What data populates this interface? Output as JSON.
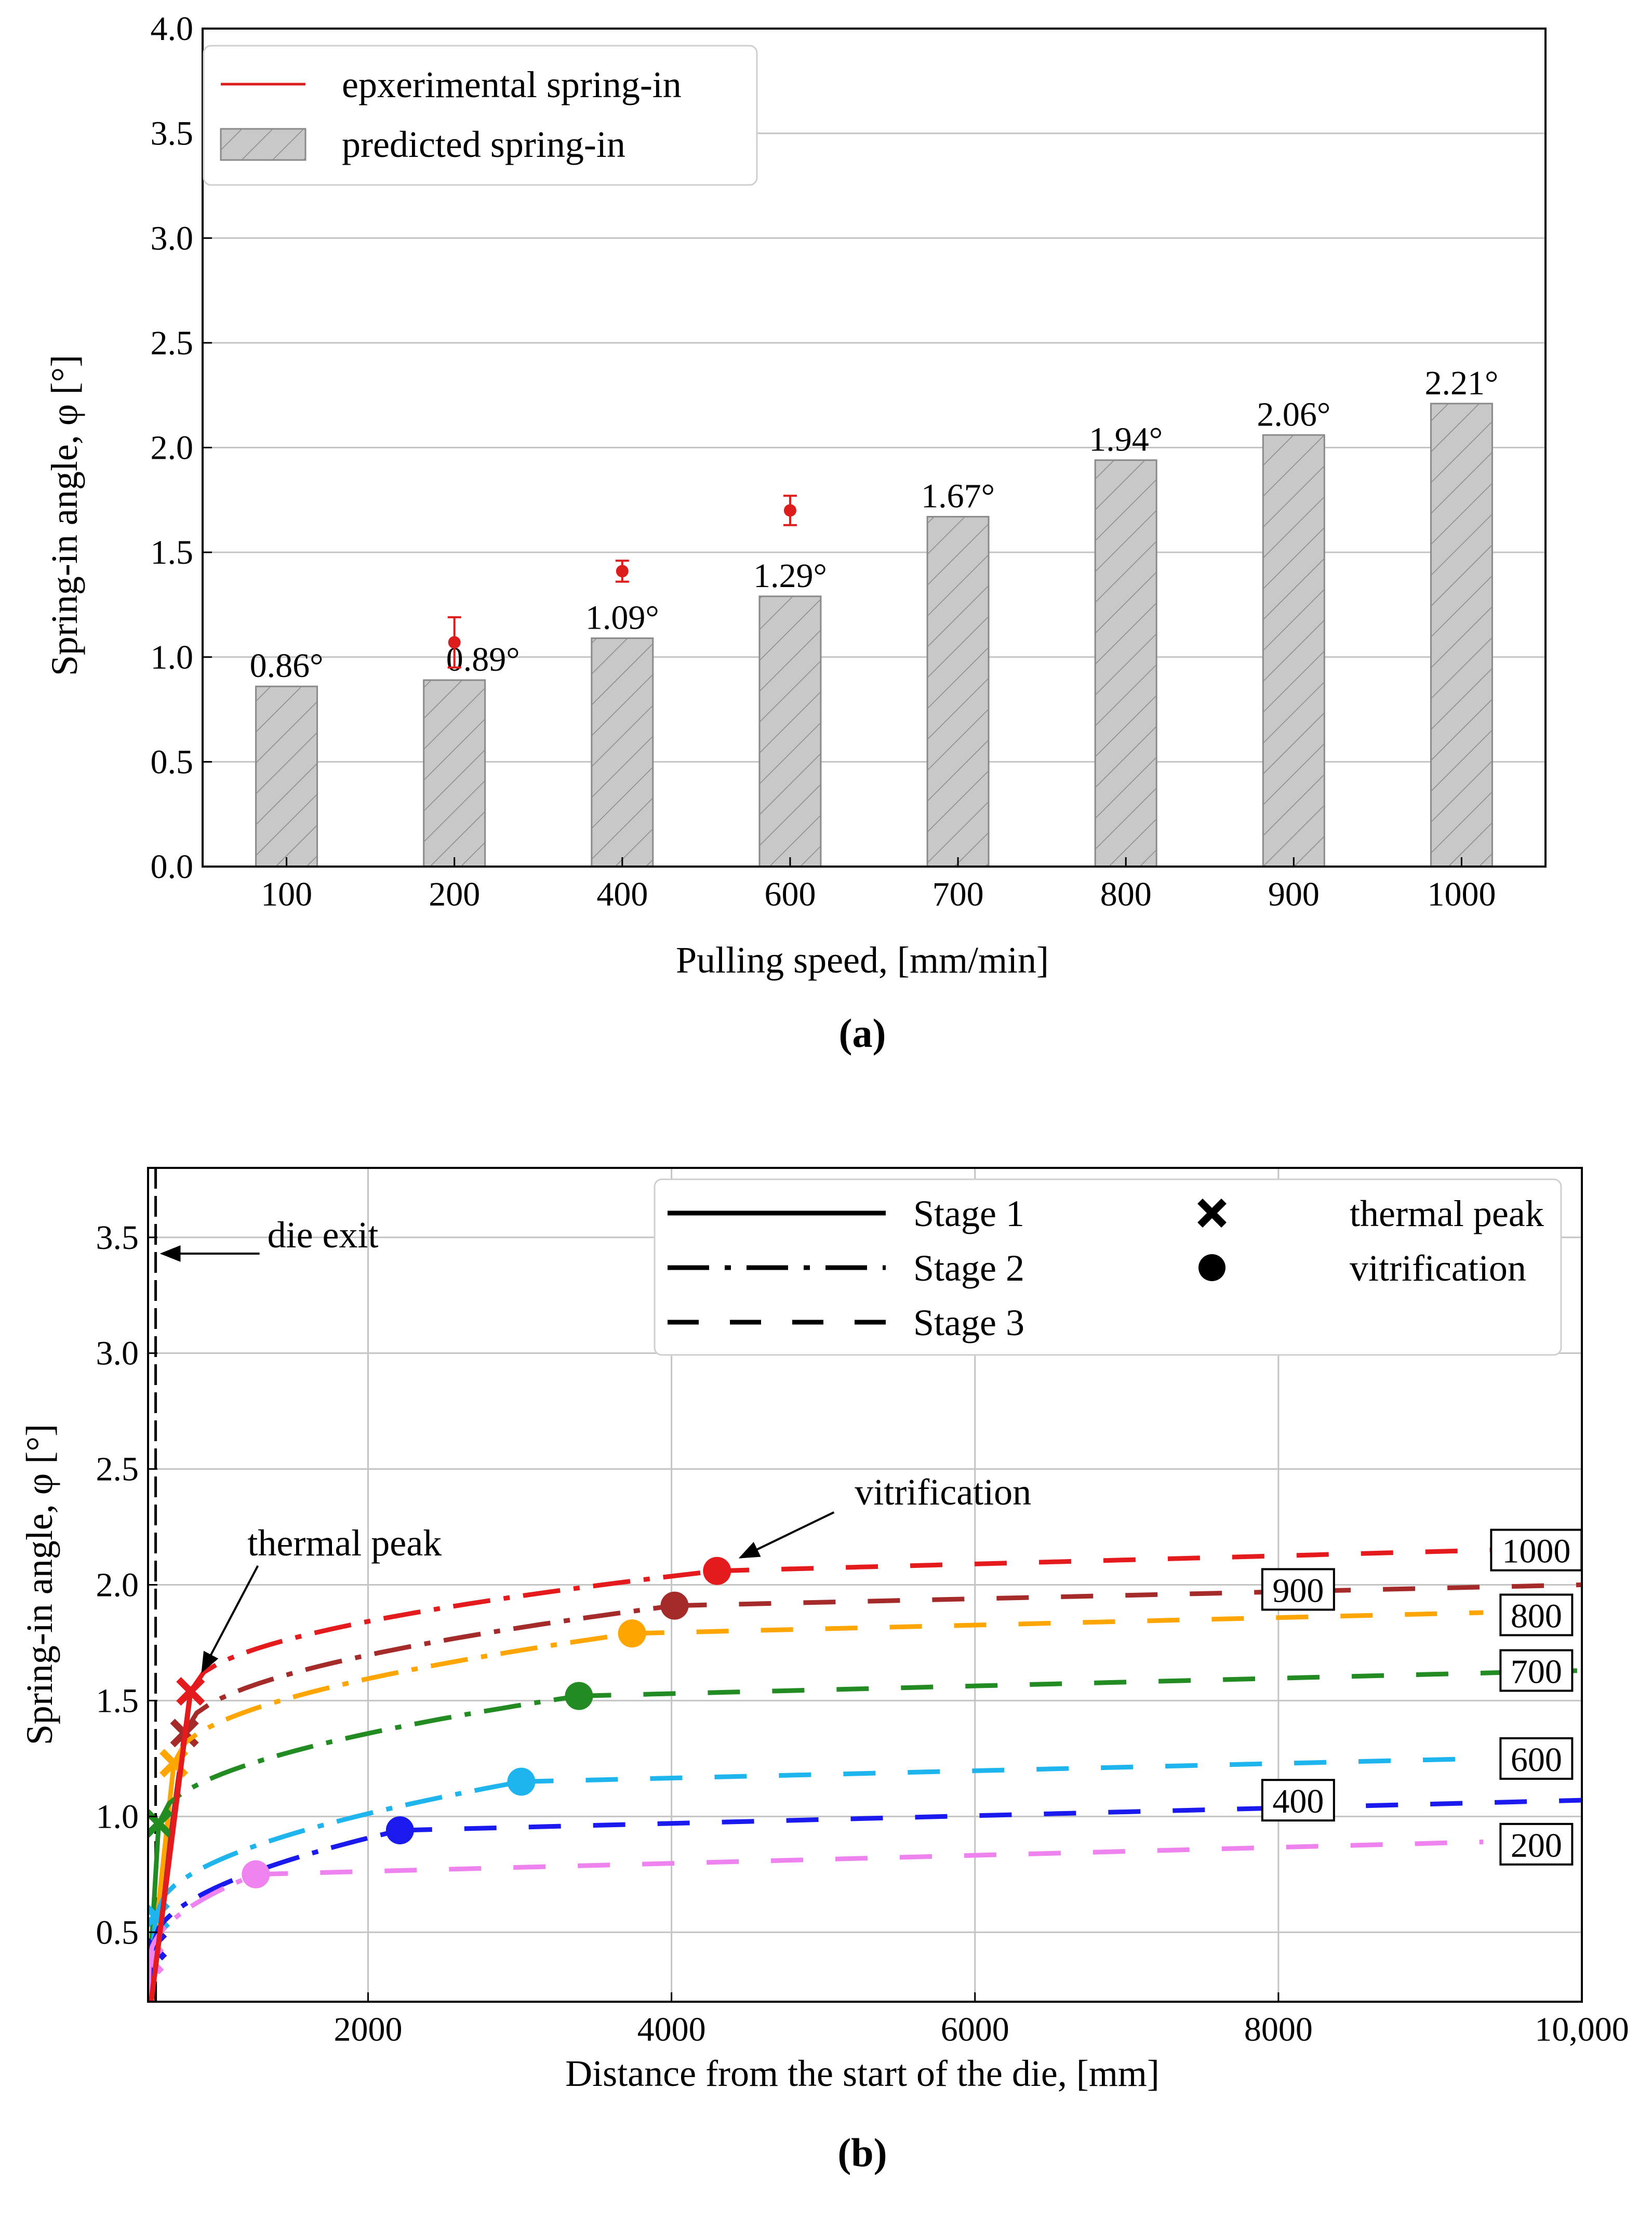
{
  "chart_data": [
    {
      "panel": "a",
      "caption": "(a)",
      "type": "bar",
      "title": "",
      "xlabel": "Pulling speed, [mm/min]",
      "ylabel": "Spring-in angle, φ [°]",
      "ylim": [
        0,
        4.0
      ],
      "yticks": [
        "0.0",
        "0.5",
        "1.0",
        "1.5",
        "2.0",
        "2.5",
        "3.0",
        "3.5",
        "4.0"
      ],
      "grid": true,
      "legend_position": "top-left",
      "categories": [
        "100",
        "200",
        "400",
        "600",
        "700",
        "800",
        "900",
        "1000"
      ],
      "series": [
        {
          "name": "predicted spring-in",
          "kind": "bar",
          "color": "#c8c8c8",
          "values": [
            0.86,
            0.89,
            1.09,
            1.29,
            1.67,
            1.94,
            2.06,
            2.21
          ],
          "labels": [
            "0.86°",
            "0.89°",
            "1.09°",
            "1.29°",
            "1.67°",
            "1.94°",
            "2.06°",
            "2.21°"
          ]
        },
        {
          "name": "epxerimental spring-in",
          "kind": "errorbar",
          "color": "#dd1c1c",
          "points": [
            {
              "category": "200",
              "value": 1.07,
              "err": 0.12
            },
            {
              "category": "400",
              "value": 1.41,
              "err": 0.05
            },
            {
              "category": "600",
              "value": 1.7,
              "err": 0.07
            }
          ]
        }
      ]
    },
    {
      "panel": "b",
      "caption": "(b)",
      "type": "line",
      "xlabel": "Distance from the start of the die, [mm]",
      "ylabel": "Spring-in angle, φ [°]",
      "xlim": [
        550,
        10000
      ],
      "ylim": [
        0.2,
        3.8
      ],
      "xticks": [
        {
          "value": 2000,
          "label": "2000"
        },
        {
          "value": 4000,
          "label": "4000"
        },
        {
          "value": 6000,
          "label": "6000"
        },
        {
          "value": 8000,
          "label": "8000"
        },
        {
          "value": 10000,
          "label": "10,000"
        }
      ],
      "yticks": [
        {
          "value": 0.5,
          "label": "0.5"
        },
        {
          "value": 1.0,
          "label": "1.0"
        },
        {
          "value": 1.5,
          "label": "1.5"
        },
        {
          "value": 2.0,
          "label": "2.0"
        },
        {
          "value": 2.5,
          "label": "2.5"
        },
        {
          "value": 3.0,
          "label": "3.0"
        },
        {
          "value": 3.5,
          "label": "3.5"
        }
      ],
      "grid": true,
      "legend": {
        "position": "top-right",
        "lines": [
          "Stage 1",
          "Stage 2",
          "Stage 3"
        ],
        "markers": [
          "thermal peak",
          "vitrification"
        ]
      },
      "die_exit_x": 600,
      "annotations": [
        {
          "text": "die exit",
          "target": [
            600,
            3.43
          ]
        },
        {
          "text": "thermal peak",
          "target": [
            880,
            1.6
          ]
        },
        {
          "text": "vitrification",
          "target": [
            4420,
            2.1
          ]
        }
      ],
      "series": [
        {
          "name": "1000",
          "label": "1000",
          "color": "#e41a1c",
          "start": [
            550,
            0.2
          ],
          "peak": [
            830,
            1.54
          ],
          "vitri": [
            4300,
            2.06
          ],
          "end": [
            9400,
            2.15
          ],
          "label_pos": [
            9700,
            2.15
          ]
        },
        {
          "name": "900",
          "label": "900",
          "color": "#a52a2a",
          "start": [
            550,
            0.2
          ],
          "peak": [
            790,
            1.36
          ],
          "vitri": [
            4020,
            1.91
          ],
          "end": [
            10000,
            2.0
          ],
          "label_pos": [
            8130,
            1.98
          ]
        },
        {
          "name": "800",
          "label": "800",
          "color": "#ffa500",
          "start": [
            550,
            0.2
          ],
          "peak": [
            720,
            1.23
          ],
          "vitri": [
            3740,
            1.79
          ],
          "end": [
            9350,
            1.88
          ],
          "label_pos": [
            9700,
            1.87
          ]
        },
        {
          "name": "700",
          "label": "700",
          "color": "#228b22",
          "start": [
            550,
            0.2
          ],
          "peak": [
            620,
            0.97
          ],
          "vitri": [
            3390,
            1.52
          ],
          "end": [
            10000,
            1.63
          ],
          "label_pos": [
            9700,
            1.63
          ]
        },
        {
          "name": "600",
          "label": "600",
          "color": "#1eb4ee",
          "start": [
            550,
            0.2
          ],
          "peak": [
            600,
            0.57
          ],
          "vitri": [
            3010,
            1.15
          ],
          "end": [
            9350,
            1.25
          ],
          "label_pos": [
            9700,
            1.25
          ]
        },
        {
          "name": "400",
          "label": "400",
          "color": "#1a1aee",
          "start": [
            550,
            0.2
          ],
          "peak": [
            580,
            0.44
          ],
          "vitri": [
            2210,
            0.94
          ],
          "end": [
            10000,
            1.07
          ],
          "label_pos": [
            8130,
            1.07
          ]
        },
        {
          "name": "200",
          "label": "200",
          "color": "#ee82ee",
          "start": [
            550,
            0.2
          ],
          "peak": [
            560,
            0.38
          ],
          "vitri": [
            1260,
            0.75
          ],
          "end": [
            9350,
            0.89
          ],
          "label_pos": [
            9700,
            0.88
          ]
        }
      ]
    }
  ]
}
